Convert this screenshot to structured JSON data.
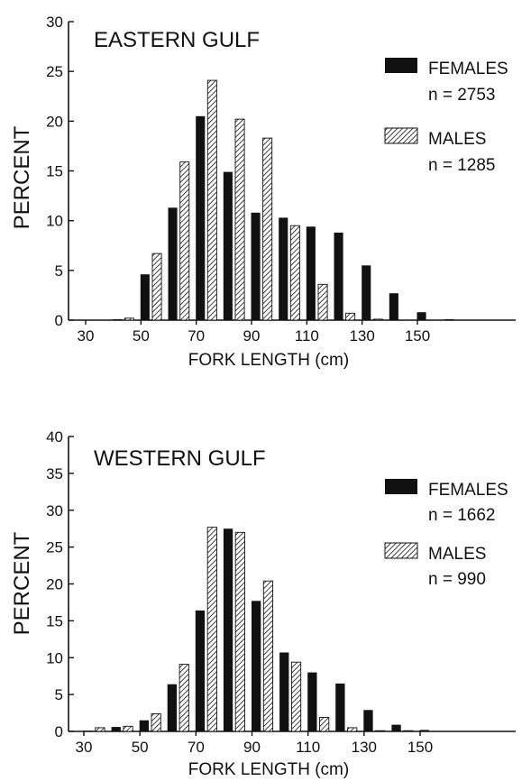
{
  "chart_data": [
    {
      "type": "bar",
      "title": "EASTERN GULF",
      "xlabel": "FORK LENGTH (cm)",
      "ylabel": "PERCENT",
      "ylim": [
        0,
        30
      ],
      "yticks": [
        0,
        5,
        10,
        15,
        20,
        25,
        30
      ],
      "xticks": [
        30,
        50,
        70,
        90,
        110,
        130,
        150
      ],
      "legend_position": "right",
      "x": [
        30,
        40,
        50,
        60,
        70,
        80,
        90,
        100,
        110,
        120,
        130,
        140,
        150,
        160
      ],
      "series": [
        {
          "name": "FEMALES",
          "n_label": "n = 2753",
          "pattern": "solid",
          "color": "#111111",
          "values": [
            0,
            0.1,
            4.6,
            11.3,
            20.5,
            14.9,
            10.8,
            10.3,
            9.4,
            8.8,
            5.5,
            2.7,
            0.8,
            0.1
          ]
        },
        {
          "name": "MALES",
          "n_label": "n = 1285",
          "pattern": "hatched",
          "color": "#111111",
          "values": [
            0,
            0.2,
            6.7,
            15.9,
            24.1,
            20.2,
            18.3,
            9.5,
            3.6,
            0.7,
            0.1,
            0,
            0,
            0
          ]
        }
      ]
    },
    {
      "type": "bar",
      "title": "WESTERN GULF",
      "xlabel": "FORK LENGTH (cm)",
      "ylabel": "PERCENT",
      "ylim": [
        0,
        40
      ],
      "yticks": [
        0,
        5,
        10,
        15,
        20,
        25,
        30,
        35,
        40
      ],
      "xticks": [
        30,
        50,
        70,
        90,
        110,
        130,
        150
      ],
      "legend_position": "right",
      "x": [
        30,
        40,
        50,
        60,
        70,
        80,
        90,
        100,
        110,
        120,
        130,
        140,
        150,
        160
      ],
      "series": [
        {
          "name": "FEMALES",
          "n_label": "n = 1662",
          "pattern": "solid",
          "color": "#111111",
          "values": [
            0.1,
            0.6,
            1.5,
            6.4,
            16.4,
            27.5,
            17.7,
            10.7,
            8.0,
            6.5,
            2.9,
            0.9,
            0.2,
            0
          ]
        },
        {
          "name": "MALES",
          "n_label": "n = 990",
          "pattern": "hatched",
          "color": "#111111",
          "values": [
            0.5,
            0.7,
            2.4,
            9.1,
            27.7,
            27.0,
            20.4,
            9.4,
            1.9,
            0.5,
            0.1,
            0.1,
            0,
            0
          ]
        }
      ]
    }
  ]
}
